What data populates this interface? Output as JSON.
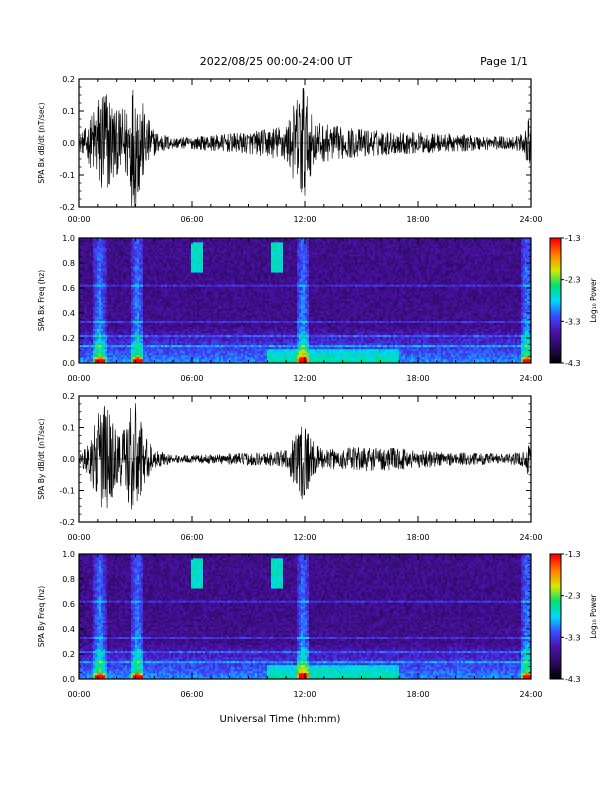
{
  "header": {
    "date_range": "2022/08/25  00:00-24:00 UT",
    "page": "Page 1/1"
  },
  "chart_data": [
    {
      "type": "line",
      "panel": "bx-waveform",
      "ylabel": "SPA Bx dB/dt (nT/sec)",
      "xlim": [
        0,
        24
      ],
      "ylim": [
        -0.2,
        0.2
      ],
      "yticks": [
        "-0.2",
        "-0.1",
        "0.0",
        "0.1",
        "0.2"
      ],
      "xticks": [
        "00:00",
        "06:00",
        "12:00",
        "18:00",
        "24:00"
      ],
      "envelope_hours": [
        0,
        0.5,
        1,
        1.3,
        1.7,
        2,
        2.5,
        2.8,
        3.1,
        3.5,
        4,
        5,
        6,
        7,
        8,
        9,
        10,
        11,
        11.6,
        11.9,
        12.2,
        12.5,
        13,
        14,
        15,
        16,
        17,
        18,
        19,
        20,
        21,
        22,
        23,
        23.6,
        23.9,
        24
      ],
      "envelope_amplitude": [
        0.02,
        0.06,
        0.15,
        0.2,
        0.15,
        0.1,
        0.12,
        0.2,
        0.2,
        0.1,
        0.04,
        0.018,
        0.02,
        0.025,
        0.03,
        0.035,
        0.045,
        0.06,
        0.15,
        0.22,
        0.12,
        0.07,
        0.06,
        0.05,
        0.045,
        0.04,
        0.035,
        0.035,
        0.03,
        0.028,
        0.025,
        0.022,
        0.022,
        0.03,
        0.08,
        0.03
      ]
    },
    {
      "type": "heatmap",
      "panel": "bx-spectrogram",
      "ylabel": "SPA Bx Freq (hz)",
      "xlim": [
        0,
        24
      ],
      "ylim": [
        0,
        1
      ],
      "yticks": [
        "0.0",
        "0.2",
        "0.4",
        "0.6",
        "0.8",
        "1.0"
      ],
      "xticks": [
        "00:00",
        "06:00",
        "12:00",
        "18:00",
        "24:00"
      ],
      "colorbar_label": "Log₁₀ Power",
      "colorbar_ticks": [
        "-1.3",
        "-2.3",
        "-3.3",
        "-4.3"
      ],
      "colorbar_range": [
        -4.3,
        -1.3
      ],
      "colors": [
        "#000000",
        "#2a0a5a",
        "#4b10a8",
        "#3a4aff",
        "#00d8ff",
        "#00e070",
        "#d8e800",
        "#ff8000",
        "#ff0000"
      ],
      "active_hours": [
        1.1,
        3.1,
        11.9,
        23.8
      ],
      "blob_hours": [
        6.3,
        10.5
      ],
      "line_freqs": [
        0.62,
        0.33,
        0.22,
        0.14
      ]
    },
    {
      "type": "line",
      "panel": "by-waveform",
      "ylabel": "SPA By dB/dt (nT/sec)",
      "xlim": [
        0,
        24
      ],
      "ylim": [
        -0.2,
        0.2
      ],
      "yticks": [
        "-0.2",
        "-0.1",
        "0.0",
        "0.1",
        "0.2"
      ],
      "xticks": [
        "00:00",
        "06:00",
        "12:00",
        "18:00",
        "24:00"
      ],
      "envelope_hours": [
        0,
        0.5,
        1,
        1.3,
        1.7,
        2,
        2.5,
        2.8,
        3.1,
        3.5,
        4,
        5,
        6,
        7,
        8,
        9,
        10,
        11,
        11.6,
        11.9,
        12.2,
        12.5,
        13,
        14,
        15,
        16,
        17,
        18,
        19,
        20,
        21,
        22,
        23,
        23.6,
        23.9,
        24
      ],
      "envelope_amplitude": [
        0.015,
        0.05,
        0.14,
        0.2,
        0.14,
        0.09,
        0.11,
        0.2,
        0.17,
        0.08,
        0.03,
        0.012,
        0.012,
        0.015,
        0.018,
        0.02,
        0.022,
        0.03,
        0.1,
        0.15,
        0.1,
        0.05,
        0.03,
        0.035,
        0.04,
        0.038,
        0.035,
        0.03,
        0.025,
        0.022,
        0.02,
        0.018,
        0.018,
        0.025,
        0.06,
        0.025
      ]
    },
    {
      "type": "heatmap",
      "panel": "by-spectrogram",
      "ylabel": "SPA By Freq (hz)",
      "xlim": [
        0,
        24
      ],
      "ylim": [
        0,
        1
      ],
      "yticks": [
        "0.0",
        "0.2",
        "0.4",
        "0.6",
        "0.8",
        "1.0"
      ],
      "xticks": [
        "00:00",
        "06:00",
        "12:00",
        "18:00",
        "24:00"
      ],
      "xlabel": "Universal Time (hh:mm)",
      "colorbar_label": "Log₁₀ Power",
      "colorbar_ticks": [
        "-1.3",
        "-2.3",
        "-3.3",
        "-4.3"
      ],
      "colorbar_range": [
        -4.3,
        -1.3
      ],
      "colors": [
        "#000000",
        "#2a0a5a",
        "#4b10a8",
        "#3a4aff",
        "#00d8ff",
        "#00e070",
        "#d8e800",
        "#ff8000",
        "#ff0000"
      ],
      "active_hours": [
        1.1,
        3.1,
        11.9,
        23.8
      ],
      "blob_hours": [
        6.3,
        10.5
      ],
      "line_freqs": [
        0.62,
        0.33,
        0.22,
        0.14
      ]
    }
  ]
}
